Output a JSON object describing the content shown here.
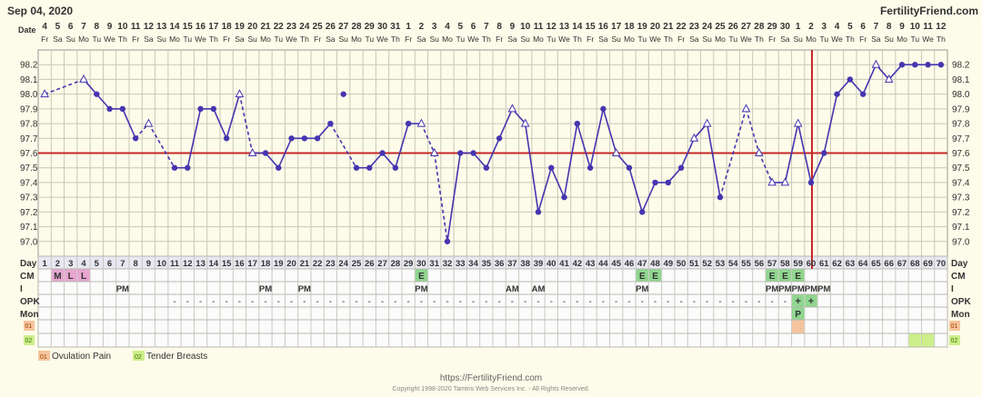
{
  "header": {
    "date": "Sep 04, 2020",
    "site": "FertilityFriend.com"
  },
  "labels": {
    "date": "Date",
    "day": "Day",
    "cm": "CM",
    "i": "I",
    "opk": "OPK",
    "mon": "Mon"
  },
  "legend": [
    {
      "code": "01",
      "label": "Ovulation Pain",
      "color": "#f5c49c"
    },
    {
      "code": "02",
      "label": "Tender Breasts",
      "color": "#cdee8a"
    }
  ],
  "footer": {
    "url": "https://FertilityFriend.com",
    "copyright": "Copyright 1998-2020 Tamtris Web Services Inc. - All Rights Reserved."
  },
  "chart_data": {
    "type": "line",
    "ylim": [
      96.9,
      98.3
    ],
    "yticks": [
      "97.0",
      "97.1",
      "97.2",
      "97.3",
      "97.4",
      "97.5",
      "97.6",
      "97.7",
      "97.8",
      "97.9",
      "98.0",
      "98.1",
      "98.2"
    ],
    "coverline": 97.6,
    "ovulation_day": 60,
    "dates": [
      4,
      5,
      6,
      7,
      8,
      9,
      10,
      11,
      12,
      13,
      14,
      15,
      16,
      17,
      18,
      19,
      20,
      21,
      22,
      23,
      24,
      25,
      26,
      27,
      28,
      29,
      30,
      31,
      1,
      2,
      3,
      4,
      5,
      6,
      7,
      8,
      9,
      10,
      11,
      12,
      13,
      14,
      15,
      16,
      17,
      18,
      19,
      20,
      21,
      22,
      23,
      24,
      25,
      26,
      27,
      28,
      29,
      30,
      1,
      2,
      3,
      4,
      5,
      6,
      7,
      8,
      9,
      10,
      11,
      12
    ],
    "weekdays": [
      "Fr",
      "Sa",
      "Su",
      "Mo",
      "Tu",
      "We",
      "Th",
      "Fr",
      "Sa",
      "Su",
      "Mo",
      "Tu",
      "We",
      "Th",
      "Fr",
      "Sa",
      "Su",
      "Mo",
      "Tu",
      "We",
      "Th",
      "Fr",
      "Sa",
      "Su",
      "Mo",
      "Tu",
      "We",
      "Th",
      "Fr",
      "Sa",
      "Su",
      "Mo",
      "Tu",
      "We",
      "Th",
      "Fr",
      "Sa",
      "Su",
      "Mo",
      "Tu",
      "We",
      "Th",
      "Fr",
      "Sa",
      "Su",
      "Mo",
      "Tu",
      "We",
      "Th",
      "Fr",
      "Sa",
      "Su",
      "Mo",
      "Tu",
      "We",
      "Th",
      "Fr",
      "Sa",
      "Su",
      "Mo",
      "Tu",
      "We",
      "Th",
      "Fr",
      "Sa",
      "Su",
      "Mo",
      "Tu",
      "We",
      "Th"
    ],
    "temps": [
      {
        "day": 1,
        "t": 98.0,
        "open": true
      },
      {
        "day": 4,
        "t": 98.1,
        "open": true
      },
      {
        "day": 5,
        "t": 98.0
      },
      {
        "day": 6,
        "t": 97.9
      },
      {
        "day": 7,
        "t": 97.9
      },
      {
        "day": 8,
        "t": 97.7
      },
      {
        "day": 9,
        "t": 97.8,
        "open": true
      },
      {
        "day": 11,
        "t": 97.5
      },
      {
        "day": 12,
        "t": 97.5
      },
      {
        "day": 13,
        "t": 97.9
      },
      {
        "day": 14,
        "t": 97.9
      },
      {
        "day": 15,
        "t": 97.7
      },
      {
        "day": 16,
        "t": 98.0,
        "open": true
      },
      {
        "day": 17,
        "t": 97.6,
        "open": true
      },
      {
        "day": 18,
        "t": 97.6
      },
      {
        "day": 19,
        "t": 97.5
      },
      {
        "day": 20,
        "t": 97.7
      },
      {
        "day": 21,
        "t": 97.7
      },
      {
        "day": 22,
        "t": 97.7
      },
      {
        "day": 23,
        "t": 97.8
      },
      {
        "day": 24,
        "t": 98.0,
        "separate": true
      },
      {
        "day": 25,
        "t": 97.5
      },
      {
        "day": 26,
        "t": 97.5
      },
      {
        "day": 27,
        "t": 97.6
      },
      {
        "day": 28,
        "t": 97.5
      },
      {
        "day": 29,
        "t": 97.8
      },
      {
        "day": 30,
        "t": 97.8,
        "open": true
      },
      {
        "day": 31,
        "t": 97.6,
        "open": true
      },
      {
        "day": 32,
        "t": 97.0
      },
      {
        "day": 33,
        "t": 97.6
      },
      {
        "day": 34,
        "t": 97.6
      },
      {
        "day": 35,
        "t": 97.5
      },
      {
        "day": 36,
        "t": 97.7
      },
      {
        "day": 37,
        "t": 97.9,
        "open": true
      },
      {
        "day": 38,
        "t": 97.8,
        "open": true
      },
      {
        "day": 39,
        "t": 97.2
      },
      {
        "day": 40,
        "t": 97.5
      },
      {
        "day": 41,
        "t": 97.3
      },
      {
        "day": 42,
        "t": 97.8
      },
      {
        "day": 43,
        "t": 97.5
      },
      {
        "day": 44,
        "t": 97.9
      },
      {
        "day": 45,
        "t": 97.6,
        "open": true
      },
      {
        "day": 46,
        "t": 97.5
      },
      {
        "day": 47,
        "t": 97.2
      },
      {
        "day": 48,
        "t": 97.4
      },
      {
        "day": 49,
        "t": 97.4
      },
      {
        "day": 50,
        "t": 97.5
      },
      {
        "day": 51,
        "t": 97.7,
        "open": true
      },
      {
        "day": 52,
        "t": 97.8,
        "open": true
      },
      {
        "day": 53,
        "t": 97.3
      },
      {
        "day": 55,
        "t": 97.9,
        "open": true
      },
      {
        "day": 56,
        "t": 97.6,
        "open": true
      },
      {
        "day": 57,
        "t": 97.4,
        "open": true
      },
      {
        "day": 58,
        "t": 97.4,
        "open": true
      },
      {
        "day": 59,
        "t": 97.8,
        "open": true
      },
      {
        "day": 60,
        "t": 97.4
      },
      {
        "day": 61,
        "t": 97.6
      },
      {
        "day": 62,
        "t": 98.0
      },
      {
        "day": 63,
        "t": 98.1
      },
      {
        "day": 64,
        "t": 98.0
      },
      {
        "day": 65,
        "t": 98.2,
        "open": true
      },
      {
        "day": 66,
        "t": 98.1,
        "open": true
      },
      {
        "day": 67,
        "t": 98.2
      },
      {
        "day": 68,
        "t": 98.2
      },
      {
        "day": 69,
        "t": 98.2
      },
      {
        "day": 70,
        "t": 98.2
      }
    ],
    "dashed_segments_start_days": [
      1,
      8,
      9,
      16,
      23,
      30,
      31,
      53,
      55,
      56
    ],
    "cm": [
      {
        "day": 2,
        "v": "M",
        "color": "#e7a6d0"
      },
      {
        "day": 3,
        "v": "L",
        "color": "#e7a6d0"
      },
      {
        "day": 4,
        "v": "L",
        "color": "#e7a6d0"
      },
      {
        "day": 30,
        "v": "E",
        "color": "#8fd68f"
      },
      {
        "day": 47,
        "v": "E",
        "color": "#8fd68f"
      },
      {
        "day": 48,
        "v": "E",
        "color": "#8fd68f"
      },
      {
        "day": 57,
        "v": "E",
        "color": "#8fd68f"
      },
      {
        "day": 58,
        "v": "E",
        "color": "#8fd68f"
      },
      {
        "day": 59,
        "v": "E",
        "color": "#8fd68f"
      }
    ],
    "intercourse": [
      {
        "day": 7,
        "v": "PM"
      },
      {
        "day": 18,
        "v": "PM"
      },
      {
        "day": 21,
        "v": "PM"
      },
      {
        "day": 30,
        "v": "PM"
      },
      {
        "day": 37,
        "v": "AM"
      },
      {
        "day": 39,
        "v": "AM"
      },
      {
        "day": 47,
        "v": "PM"
      },
      {
        "day": 57,
        "v": "PM"
      },
      {
        "day": 58,
        "v": "PM"
      },
      {
        "day": 59,
        "v": "PM"
      },
      {
        "day": 60,
        "v": "PM"
      },
      {
        "day": 61,
        "v": "PM"
      }
    ],
    "opk_neg_days": [
      11,
      12,
      13,
      14,
      15,
      16,
      17,
      18,
      19,
      20,
      21,
      22,
      23,
      24,
      25,
      26,
      27,
      28,
      29,
      30,
      31,
      32,
      33,
      34,
      35,
      36,
      37,
      38,
      39,
      40,
      41,
      42,
      43,
      44,
      45,
      46,
      47,
      48,
      49,
      50,
      51,
      52,
      53,
      54,
      55,
      56,
      57,
      58
    ],
    "opk_pos_days": [
      59,
      60
    ],
    "opk_neg_symbol": "-",
    "opk_pos_symbol": "+",
    "mon": [
      {
        "day": 59,
        "v": "P"
      }
    ],
    "sym01_days": [
      59
    ],
    "sym02_days": [
      68,
      69
    ]
  }
}
